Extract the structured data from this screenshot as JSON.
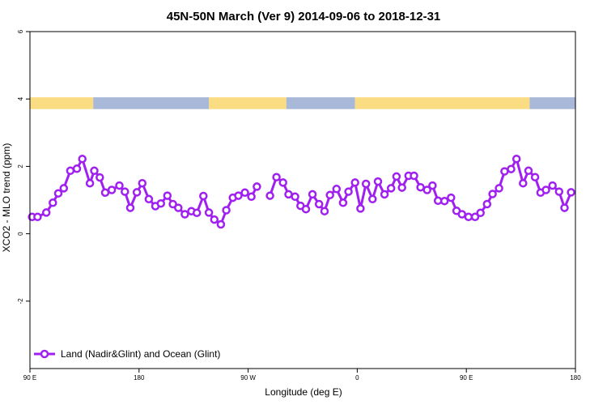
{
  "chart_data": {
    "type": "line",
    "title": "45N-50N March (Ver 9)   2014-09-06 to 2018-12-31",
    "xlabel": "Longitude (deg E)",
    "ylabel": "XCO2 - MLO trend (ppm)",
    "xlim": [
      0,
      500
    ],
    "ylim": [
      -4,
      6
    ],
    "x_ticks": [
      {
        "value": 0,
        "label": "90 E"
      },
      {
        "value": 100,
        "label": "180"
      },
      {
        "value": 200,
        "label": "90 W"
      },
      {
        "value": 300,
        "label": "0"
      },
      {
        "value": 400,
        "label": "90 E"
      },
      {
        "value": 500,
        "label": "180"
      }
    ],
    "y_ticks": [
      {
        "value": -2,
        "label": "-2"
      },
      {
        "value": 0,
        "label": "0"
      },
      {
        "value": 2,
        "label": "2"
      },
      {
        "value": 4,
        "label": "4"
      },
      {
        "value": 6,
        "label": "6"
      }
    ],
    "land_ocean_band": {
      "y_range": [
        3.7,
        4.05
      ],
      "land_color": "#fadc82",
      "ocean_color": "#a8b8d8",
      "segments": [
        {
          "type": "land",
          "from": 0,
          "to": 58
        },
        {
          "type": "ocean",
          "from": 58,
          "to": 164
        },
        {
          "type": "land",
          "from": 164,
          "to": 235
        },
        {
          "type": "ocean",
          "from": 235,
          "to": 298
        },
        {
          "type": "land",
          "from": 298,
          "to": 458
        },
        {
          "type": "ocean",
          "from": 458,
          "to": 500
        }
      ]
    },
    "series": [
      {
        "name": "Land (Nadir&Glint) and Ocean (Glint)",
        "color": "#a020f0",
        "segments": [
          [
            [
              2,
              0.5
            ],
            [
              7,
              0.5
            ],
            [
              15,
              0.63
            ],
            [
              21,
              0.92
            ],
            [
              26,
              1.2
            ],
            [
              31,
              1.35
            ],
            [
              37,
              1.87
            ],
            [
              43,
              1.93
            ],
            [
              48,
              2.22
            ],
            [
              55,
              1.5
            ],
            [
              59,
              1.87
            ],
            [
              64,
              1.67
            ],
            [
              69,
              1.22
            ],
            [
              75,
              1.3
            ],
            [
              82,
              1.43
            ],
            [
              87,
              1.25
            ],
            [
              92,
              0.77
            ],
            [
              98,
              1.23
            ],
            [
              103,
              1.5
            ],
            [
              109,
              1.03
            ],
            [
              115,
              0.82
            ],
            [
              120,
              0.9
            ],
            [
              126,
              1.13
            ],
            [
              131,
              0.88
            ],
            [
              136,
              0.77
            ],
            [
              142,
              0.58
            ],
            [
              148,
              0.67
            ],
            [
              153,
              0.62
            ],
            [
              159,
              1.12
            ],
            [
              164,
              0.63
            ],
            [
              169,
              0.42
            ],
            [
              175,
              0.28
            ],
            [
              180,
              0.7
            ],
            [
              186,
              1.07
            ],
            [
              191,
              1.13
            ],
            [
              197,
              1.22
            ],
            [
              203,
              1.1
            ],
            [
              208,
              1.4
            ]
          ],
          [
            [
              220,
              1.13
            ],
            [
              226,
              1.68
            ],
            [
              232,
              1.52
            ],
            [
              237,
              1.17
            ],
            [
              243,
              1.1
            ],
            [
              248,
              0.83
            ],
            [
              253,
              0.73
            ],
            [
              259,
              1.17
            ],
            [
              265,
              0.88
            ],
            [
              270,
              0.67
            ],
            [
              275,
              1.15
            ],
            [
              281,
              1.33
            ],
            [
              287,
              0.92
            ],
            [
              292,
              1.25
            ],
            [
              298,
              1.52
            ],
            [
              303,
              0.75
            ],
            [
              308,
              1.48
            ],
            [
              314,
              1.03
            ],
            [
              319,
              1.55
            ],
            [
              325,
              1.17
            ],
            [
              331,
              1.35
            ],
            [
              336,
              1.7
            ],
            [
              341,
              1.37
            ],
            [
              347,
              1.72
            ],
            [
              352,
              1.72
            ],
            [
              358,
              1.38
            ],
            [
              364,
              1.3
            ],
            [
              369,
              1.43
            ],
            [
              374,
              0.98
            ],
            [
              380,
              0.97
            ],
            [
              386,
              1.07
            ],
            [
              391,
              0.68
            ],
            [
              396,
              0.58
            ],
            [
              402,
              0.5
            ],
            [
              408,
              0.5
            ],
            [
              413,
              0.62
            ],
            [
              419,
              0.88
            ],
            [
              424,
              1.18
            ],
            [
              430,
              1.35
            ],
            [
              435,
              1.85
            ],
            [
              441,
              1.92
            ],
            [
              446,
              2.22
            ],
            [
              452,
              1.5
            ],
            [
              457,
              1.87
            ],
            [
              463,
              1.68
            ],
            [
              468,
              1.22
            ],
            [
              473,
              1.3
            ],
            [
              479,
              1.43
            ],
            [
              485,
              1.25
            ],
            [
              490,
              0.77
            ],
            [
              496,
              1.23
            ]
          ]
        ]
      }
    ],
    "legend": {
      "position": "bottom-left"
    },
    "grid": false
  }
}
